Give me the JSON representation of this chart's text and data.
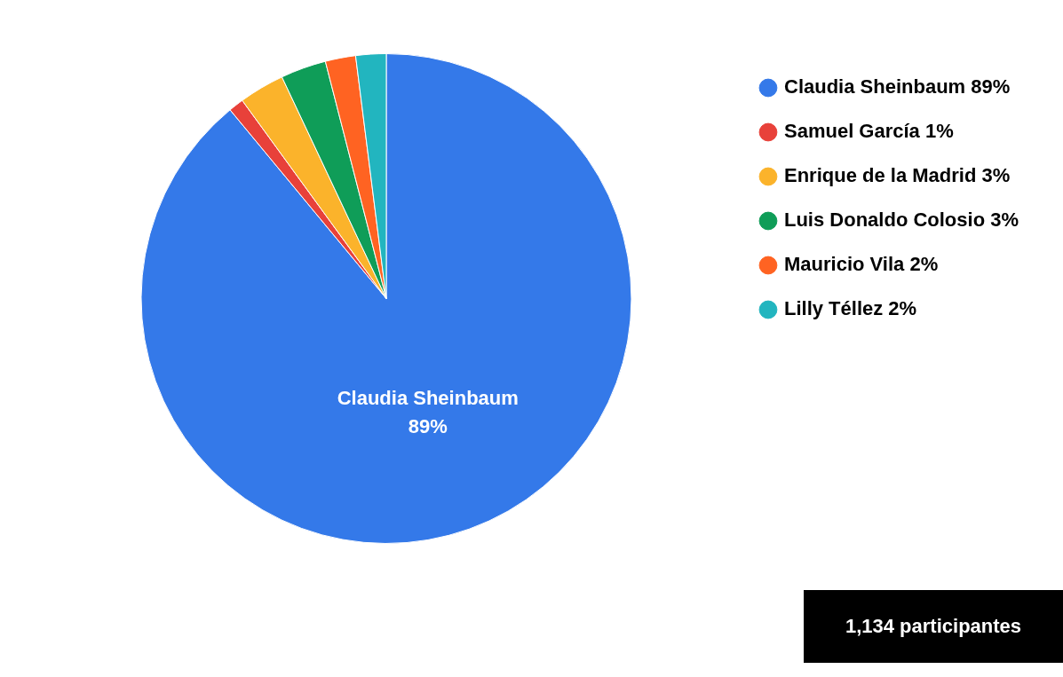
{
  "chart_data": {
    "type": "pie",
    "categories": [
      "Claudia Sheinbaum",
      "Samuel García",
      "Enrique de la Madrid",
      "Luis Donaldo Colosio",
      "Mauricio Vila",
      "Lilly Téllez"
    ],
    "values": [
      89,
      1,
      3,
      3,
      2,
      2
    ],
    "value_labels": [
      "89%",
      "1%",
      "3%",
      "3%",
      "2%",
      "2%"
    ],
    "colors": [
      "#3479e9",
      "#e8413a",
      "#fbb32b",
      "#0f9d58",
      "#ff6322",
      "#22b5bf"
    ],
    "legend": "top right",
    "annotations": [
      "1,134 participantes"
    ]
  }
}
